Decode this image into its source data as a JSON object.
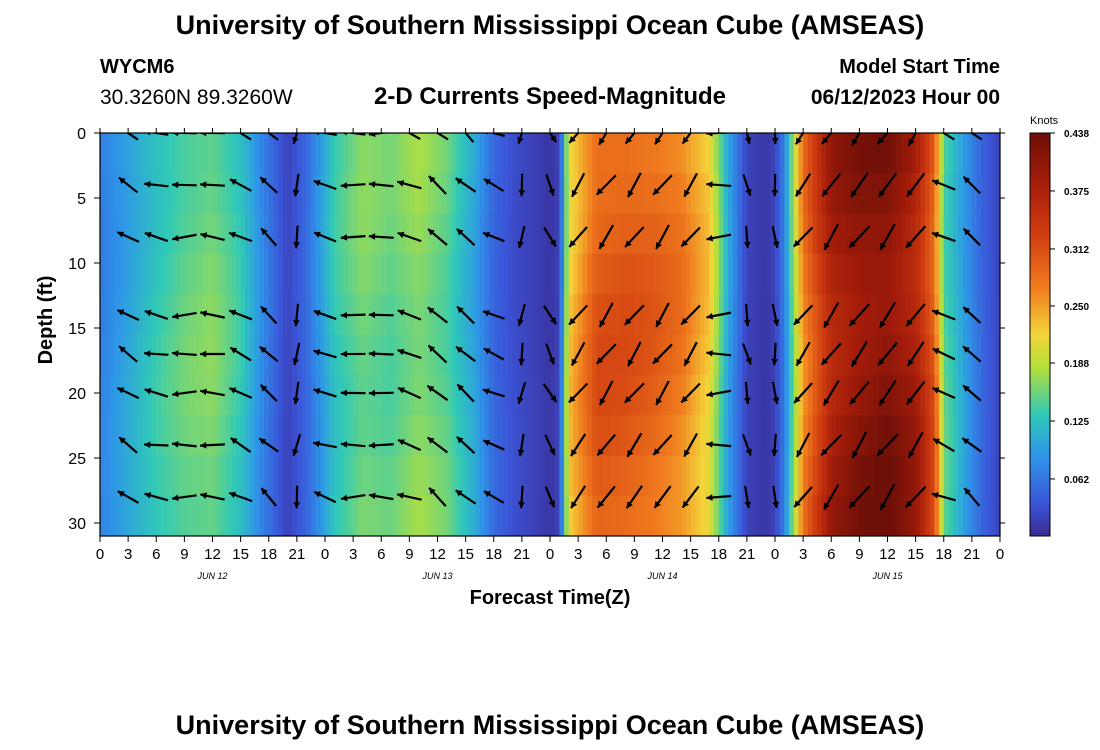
{
  "header": {
    "title": "University of Southern Mississippi Ocean Cube (AMSEAS)",
    "station": "WYCM6",
    "coords": "30.3260N  89.3260W",
    "plot_title": "2-D Currents Speed-Magnitude",
    "model_start_label": "Model Start Time",
    "model_start_date": "06/12/2023 Hour 00"
  },
  "footer": {
    "title": "University of Southern Mississippi Ocean Cube (AMSEAS)"
  },
  "chart_data": {
    "type": "heatmap",
    "title": "2-D Currents Speed-Magnitude",
    "xlabel": "Forecast Time(Z)",
    "ylabel": "Depth (ft)",
    "x_tick_labels": [
      "0",
      "3",
      "6",
      "9",
      "12",
      "15",
      "18",
      "21",
      "0",
      "3",
      "6",
      "9",
      "12",
      "15",
      "18",
      "21",
      "0",
      "3",
      "6",
      "9",
      "12",
      "15",
      "18",
      "21",
      "0",
      "3",
      "6",
      "9",
      "12",
      "15",
      "18",
      "21",
      "0"
    ],
    "day_labels": [
      "JUN 12",
      "JUN 13",
      "JUN 14",
      "JUN 15"
    ],
    "x_range_hours": [
      0,
      96
    ],
    "y_ticks": [
      0,
      5,
      10,
      15,
      20,
      25,
      30
    ],
    "y_range": [
      0,
      31
    ],
    "y_reversed": true,
    "colorbar": {
      "label": "Knots",
      "ticks": [
        0.062,
        0.125,
        0.188,
        0.25,
        0.312,
        0.375,
        0.438
      ],
      "tick_labels": [
        "0.062",
        "0.125",
        "0.188",
        "0.250",
        "0.312",
        "0.375",
        "0.438"
      ],
      "range": [
        0,
        0.438
      ]
    },
    "speed_profile": {
      "hours": [
        0,
        3,
        6,
        9,
        12,
        15,
        18,
        20,
        22,
        25,
        28,
        31,
        34,
        37,
        40,
        42,
        44,
        46,
        48,
        49,
        50,
        53,
        56,
        59,
        62,
        65,
        67,
        69,
        71,
        72,
        73,
        75,
        78,
        81,
        84,
        87,
        89,
        90,
        92,
        94,
        96
      ],
      "speed": [
        0.07,
        0.1,
        0.13,
        0.15,
        0.16,
        0.13,
        0.06,
        0.02,
        0.05,
        0.13,
        0.16,
        0.15,
        0.17,
        0.15,
        0.1,
        0.05,
        0.03,
        0.02,
        0.01,
        0.02,
        0.22,
        0.3,
        0.3,
        0.29,
        0.27,
        0.22,
        0.1,
        0.02,
        0.01,
        0.02,
        0.07,
        0.27,
        0.38,
        0.41,
        0.42,
        0.38,
        0.3,
        0.15,
        0.1,
        0.05,
        0.02
      ]
    },
    "vector_rows_ft": [
      0,
      4,
      8,
      14,
      17,
      20,
      24,
      28
    ]
  }
}
